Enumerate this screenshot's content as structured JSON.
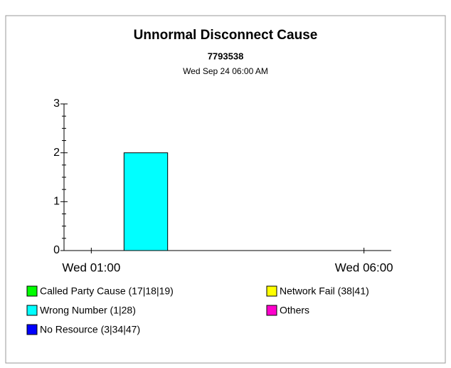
{
  "chart_data": {
    "type": "bar",
    "stacked": true,
    "title": "Unnormal Disconnect Cause",
    "subtitle": "7793538",
    "date_label": "Wed Sep 24 06:00 AM",
    "x": [
      2
    ],
    "xlim": [
      0.5,
      6.5
    ],
    "xticks": [
      {
        "value": 1,
        "label": "Wed 01:00"
      },
      {
        "value": 6,
        "label": "Wed 06:00"
      }
    ],
    "ylim": [
      0,
      3
    ],
    "yticks": [
      0,
      1,
      2,
      3
    ],
    "series": [
      {
        "name": "Called Party Cause (17|18|19)",
        "color": "#00ff00",
        "values": [
          0
        ]
      },
      {
        "name": "Network Fail (38|41)",
        "color": "#ffff00",
        "values": [
          0
        ]
      },
      {
        "name": "Wrong Number (1|28)",
        "color": "#00ffff",
        "values": [
          2
        ]
      },
      {
        "name": "Others",
        "color": "#ff00cc",
        "values": [
          0
        ]
      },
      {
        "name": "No Resource (3|34|47)",
        "color": "#0000ff",
        "values": [
          0
        ]
      }
    ]
  }
}
